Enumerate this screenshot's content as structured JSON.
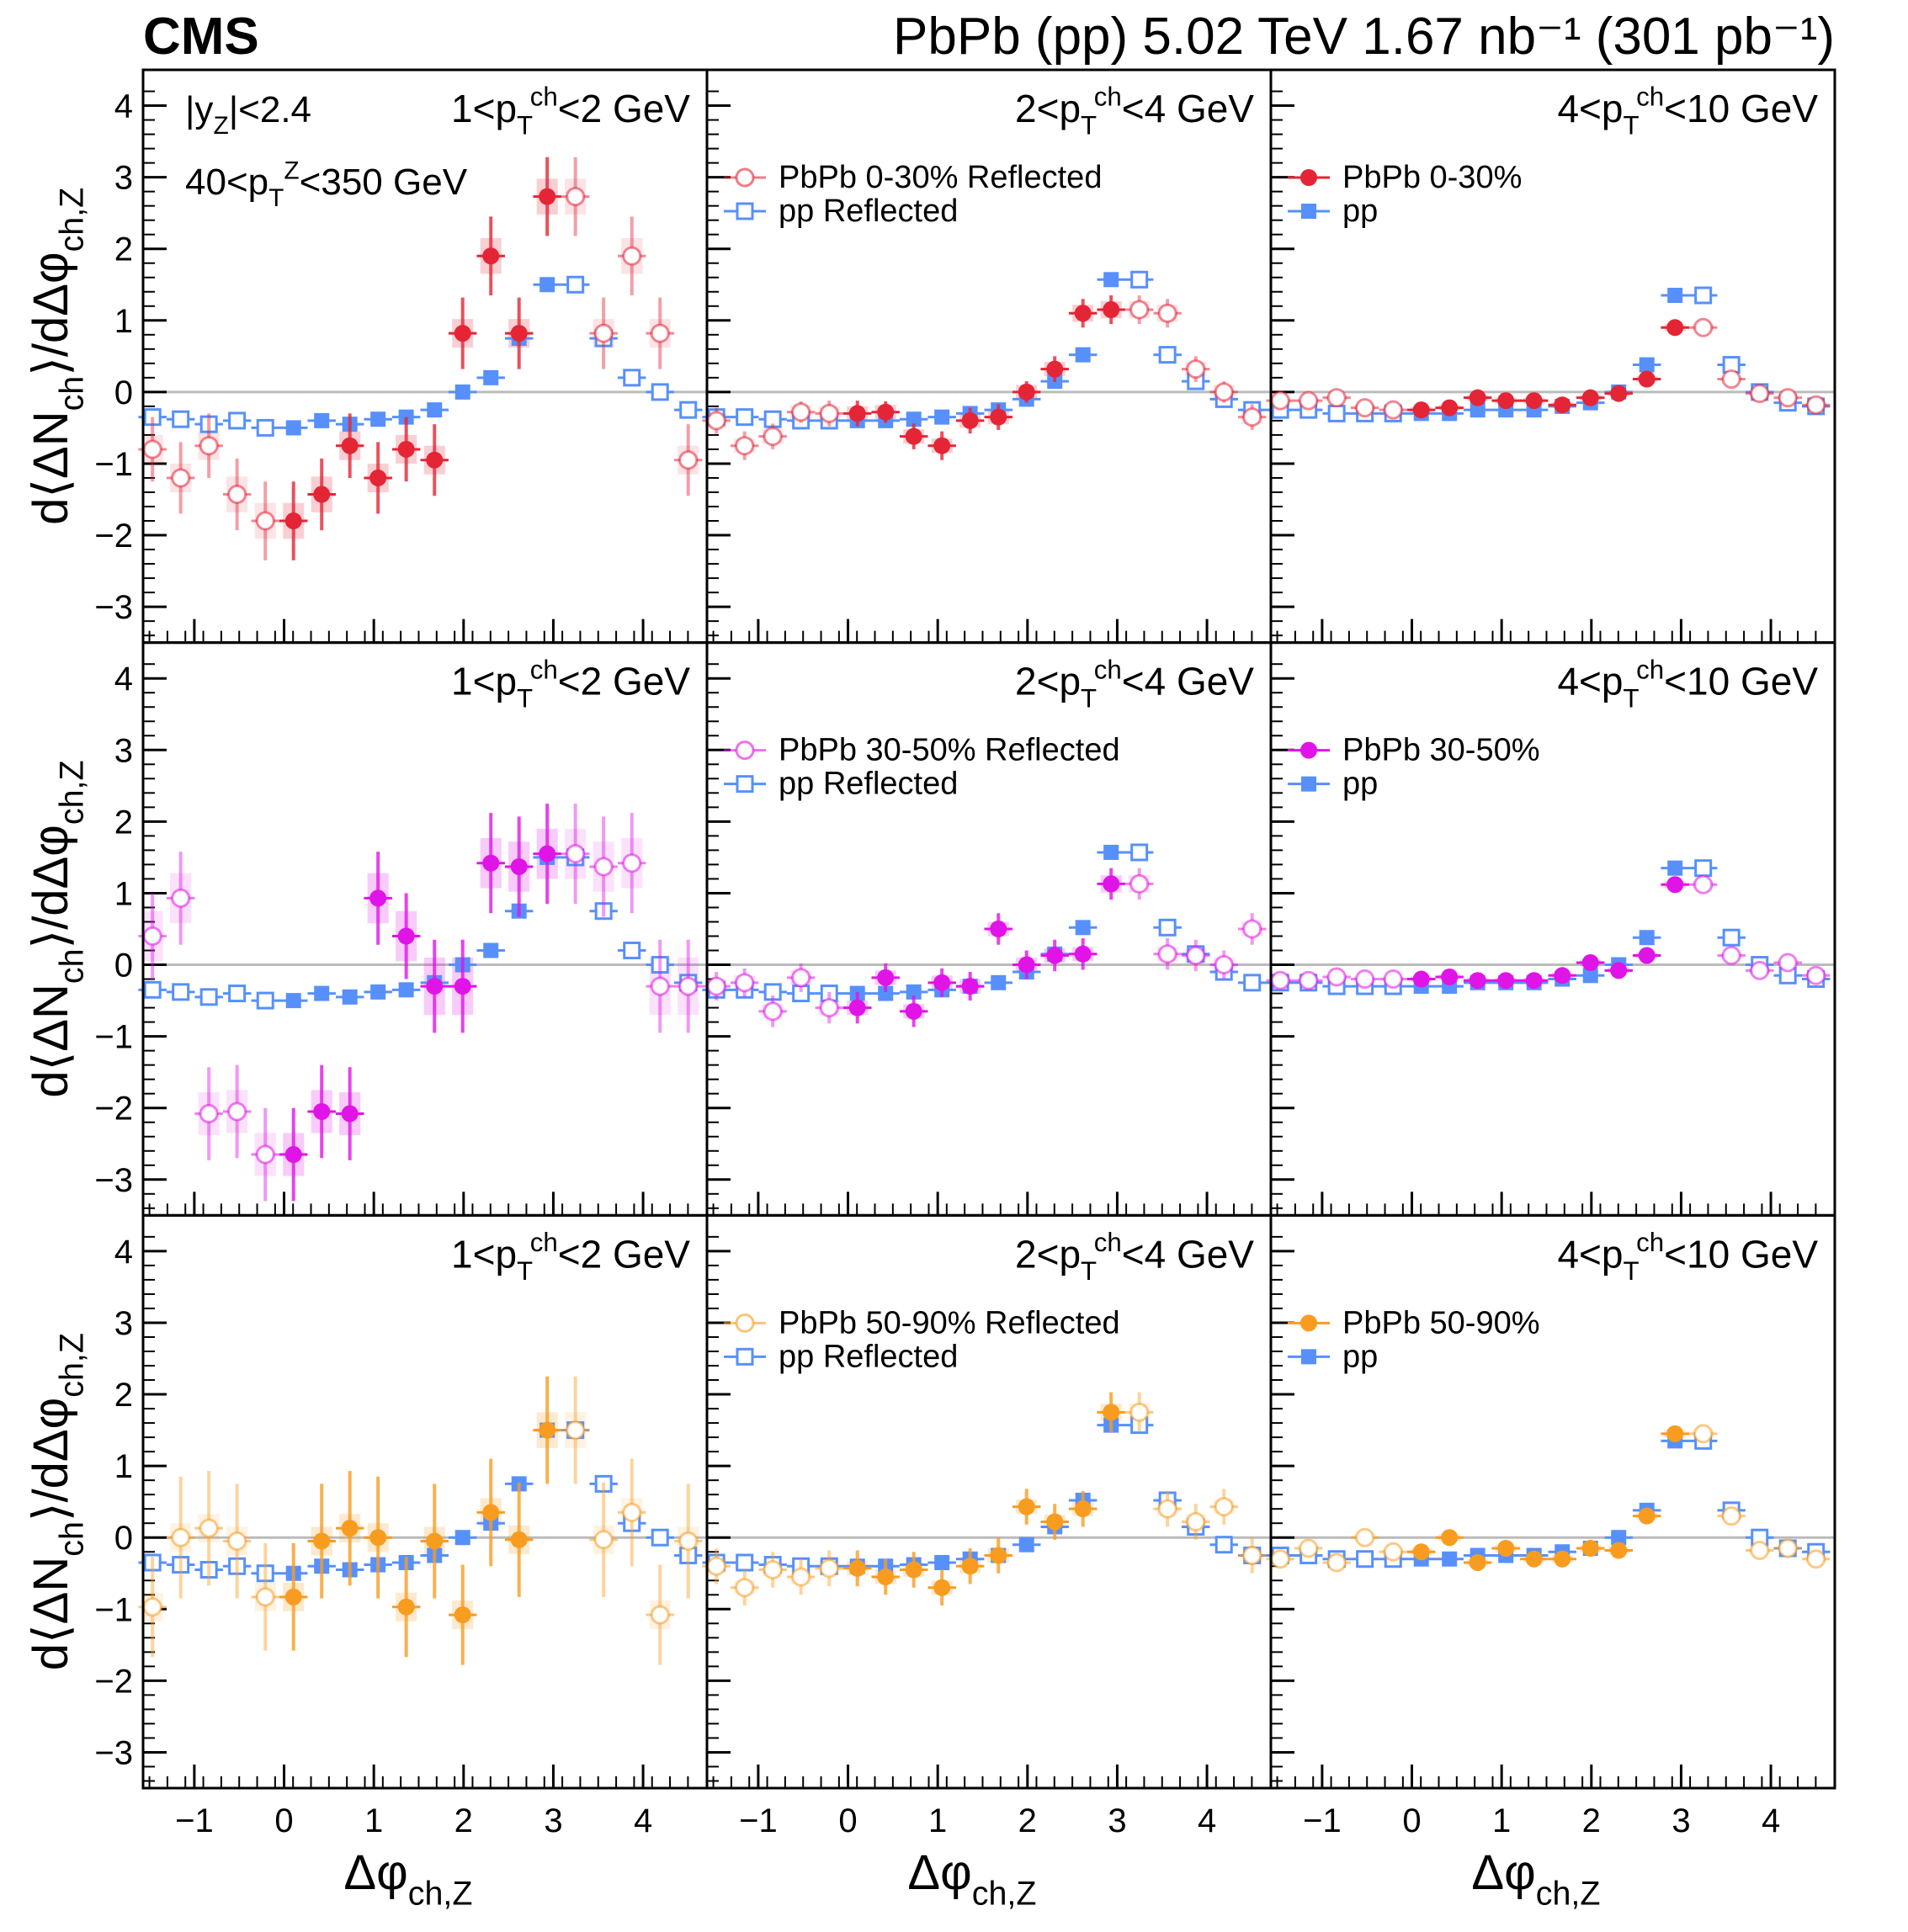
{
  "header": {
    "experiment": "CMS",
    "title": "PbPb (pp) 5.02 TeV 1.67 nb⁻¹ (301 pb⁻¹)"
  },
  "colors": {
    "pp": "#5790fc",
    "PbPb 0-30%": "#e42536",
    "PbPb 30-50%": "#e014e6",
    "PbPb 50-90%": "#f89c20",
    "zero_line": "#bbbbbb"
  },
  "axis_labels": {
    "x": "Δφch,Z",
    "y": "d⟨ΔNch⟩/dΔφch,Z"
  },
  "kinematic_labels": [
    "|yZ|<2.4",
    "40<pTZ<350 GeV"
  ],
  "column_titles": [
    "1<pTch<2 GeV",
    "2<pTch<4 GeV",
    "4<pTch<10 GeV"
  ],
  "legends": [
    {
      "reflected": "PbPb 0-30% Reflected",
      "pp_reflected": "pp Reflected",
      "measured": "PbPb 0-30%",
      "pp": "pp"
    },
    {
      "reflected": "PbPb 30-50% Reflected",
      "pp_reflected": "pp Reflected",
      "measured": "PbPb 30-50%",
      "pp": "pp"
    },
    {
      "reflected": "PbPb 50-90% Reflected",
      "pp_reflected": "pp Reflected",
      "measured": "PbPb 50-90%",
      "pp": "pp"
    }
  ],
  "chart_data": {
    "type": "scatter",
    "xlabel": "Δφch,Z",
    "ylabel": "d⟨ΔNch⟩/dΔφch,Z",
    "xlim": [
      -1.571,
      4.712
    ],
    "ylim": [
      -3.5,
      4.5
    ],
    "x_ticks": [
      -1,
      0,
      1,
      2,
      3,
      4
    ],
    "y_ticks": [
      -3,
      -2,
      -1,
      0,
      1,
      2,
      3,
      4
    ],
    "x_bin_centers": [
      -1.466,
      -1.152,
      -0.838,
      -0.524,
      -0.209,
      0.105,
      0.419,
      0.733,
      1.047,
      1.361,
      1.676,
      1.99,
      2.304,
      2.618,
      2.932,
      3.246,
      3.56,
      3.875,
      4.189,
      4.503
    ],
    "pp": [
      [
        -0.35,
        -0.38,
        -0.45,
        -0.4,
        -0.5,
        -0.5,
        -0.4,
        -0.45,
        -0.38,
        -0.35,
        -0.25,
        0.0,
        0.2,
        0.75,
        1.5,
        1.5,
        0.75,
        0.2,
        0.0,
        -0.25
      ],
      [
        -0.35,
        -0.35,
        -0.38,
        -0.4,
        -0.4,
        -0.4,
        -0.4,
        -0.38,
        -0.35,
        -0.3,
        -0.25,
        -0.1,
        0.15,
        0.52,
        1.57,
        1.57,
        0.52,
        0.15,
        -0.1,
        -0.25
      ],
      [
        -0.25,
        -0.25,
        -0.3,
        -0.3,
        -0.3,
        -0.3,
        -0.3,
        -0.25,
        -0.25,
        -0.25,
        -0.2,
        -0.15,
        0.0,
        0.38,
        1.35,
        1.35,
        0.38,
        0.0,
        -0.15,
        -0.2
      ]
    ],
    "series": [
      {
        "name": "PbPb 0-30%",
        "row": 0,
        "column": 0,
        "y": [
          -0.8,
          -1.2,
          -0.75,
          -1.43,
          -1.8,
          -1.8,
          -1.43,
          -0.75,
          -1.2,
          -0.8,
          -0.95,
          0.82,
          1.9,
          0.82,
          2.73,
          2.73,
          0.82,
          1.9,
          0.82,
          -0.95
        ],
        "stat": [
          0.45,
          0.5,
          0.45,
          0.5,
          0.55,
          0.55,
          0.5,
          0.45,
          0.5,
          0.45,
          0.5,
          0.5,
          0.55,
          0.5,
          0.55,
          0.55,
          0.5,
          0.55,
          0.5,
          0.5
        ],
        "sys": [
          0.2,
          0.2,
          0.2,
          0.25,
          0.25,
          0.25,
          0.25,
          0.2,
          0.2,
          0.2,
          0.2,
          0.2,
          0.25,
          0.2,
          0.25,
          0.25,
          0.2,
          0.25,
          0.2,
          0.2
        ]
      },
      {
        "name": "PbPb 0-30%",
        "row": 0,
        "column": 1,
        "y": [
          -0.4,
          -0.75,
          -0.62,
          -0.28,
          -0.3,
          -0.3,
          -0.28,
          -0.62,
          -0.75,
          -0.4,
          -0.35,
          0.0,
          0.32,
          1.1,
          1.15,
          1.15,
          1.1,
          0.32,
          0.0,
          -0.35
        ],
        "stat": [
          0.18,
          0.2,
          0.18,
          0.15,
          0.18,
          0.18,
          0.15,
          0.18,
          0.2,
          0.18,
          0.18,
          0.15,
          0.18,
          0.2,
          0.2,
          0.2,
          0.2,
          0.18,
          0.15,
          0.18
        ],
        "sys": [
          0.1,
          0.1,
          0.1,
          0.1,
          0.1,
          0.1,
          0.1,
          0.1,
          0.1,
          0.1,
          0.1,
          0.1,
          0.1,
          0.12,
          0.12,
          0.12,
          0.12,
          0.1,
          0.1,
          0.1
        ]
      },
      {
        "name": "PbPb 0-30%",
        "row": 0,
        "column": 2,
        "y": [
          -0.12,
          -0.12,
          -0.08,
          -0.22,
          -0.25,
          -0.25,
          -0.22,
          -0.08,
          -0.12,
          -0.12,
          -0.18,
          -0.08,
          -0.02,
          0.18,
          0.9,
          0.9,
          0.18,
          -0.02,
          -0.08,
          -0.18
        ],
        "stat": [
          0.05,
          0.05,
          0.05,
          0.05,
          0.05,
          0.05,
          0.05,
          0.05,
          0.05,
          0.05,
          0.05,
          0.05,
          0.05,
          0.05,
          0.06,
          0.06,
          0.05,
          0.05,
          0.05,
          0.05
        ],
        "sys": [
          0.04,
          0.04,
          0.04,
          0.04,
          0.04,
          0.04,
          0.04,
          0.04,
          0.04,
          0.04,
          0.04,
          0.04,
          0.04,
          0.04,
          0.05,
          0.05,
          0.04,
          0.04,
          0.04,
          0.04
        ]
      },
      {
        "name": "PbPb 30-50%",
        "row": 1,
        "column": 0,
        "y": [
          0.4,
          0.93,
          -2.08,
          -2.05,
          -2.65,
          -2.65,
          -2.05,
          -2.08,
          0.93,
          0.4,
          -0.3,
          -0.3,
          1.42,
          1.37,
          1.55,
          1.55,
          1.37,
          1.42,
          -0.3,
          -0.3
        ],
        "stat": [
          0.6,
          0.65,
          0.65,
          0.65,
          0.65,
          0.65,
          0.65,
          0.65,
          0.65,
          0.6,
          0.65,
          0.65,
          0.7,
          0.7,
          0.7,
          0.7,
          0.7,
          0.7,
          0.65,
          0.65
        ],
        "sys": [
          0.35,
          0.35,
          0.3,
          0.3,
          0.3,
          0.3,
          0.3,
          0.3,
          0.35,
          0.35,
          0.4,
          0.4,
          0.35,
          0.35,
          0.35,
          0.35,
          0.35,
          0.35,
          0.4,
          0.4
        ]
      },
      {
        "name": "PbPb 30-50%",
        "row": 1,
        "column": 1,
        "y": [
          -0.3,
          -0.25,
          -0.65,
          -0.18,
          -0.6,
          -0.6,
          -0.18,
          -0.65,
          -0.25,
          -0.3,
          0.5,
          0.0,
          0.13,
          0.15,
          1.13,
          1.13,
          0.15,
          0.13,
          0.0,
          0.5
        ],
        "stat": [
          0.2,
          0.2,
          0.22,
          0.2,
          0.22,
          0.22,
          0.2,
          0.22,
          0.2,
          0.2,
          0.22,
          0.2,
          0.22,
          0.22,
          0.22,
          0.22,
          0.22,
          0.22,
          0.2,
          0.22
        ],
        "sys": [
          0.1,
          0.1,
          0.1,
          0.1,
          0.1,
          0.1,
          0.1,
          0.1,
          0.1,
          0.1,
          0.1,
          0.1,
          0.1,
          0.1,
          0.12,
          0.12,
          0.1,
          0.1,
          0.1,
          0.1
        ]
      },
      {
        "name": "PbPb 30-50%",
        "row": 1,
        "column": 2,
        "y": [
          -0.22,
          -0.22,
          -0.17,
          -0.2,
          -0.2,
          -0.2,
          -0.17,
          -0.22,
          -0.22,
          -0.22,
          -0.15,
          0.03,
          -0.08,
          0.13,
          1.12,
          1.12,
          0.13,
          -0.08,
          0.03,
          -0.15
        ],
        "stat": [
          0.05,
          0.05,
          0.05,
          0.05,
          0.05,
          0.05,
          0.05,
          0.05,
          0.05,
          0.05,
          0.05,
          0.05,
          0.05,
          0.05,
          0.06,
          0.06,
          0.05,
          0.05,
          0.05,
          0.05
        ],
        "sys": [
          0.04,
          0.04,
          0.04,
          0.04,
          0.04,
          0.04,
          0.04,
          0.04,
          0.04,
          0.04,
          0.04,
          0.04,
          0.04,
          0.04,
          0.05,
          0.05,
          0.04,
          0.04,
          0.04,
          0.04
        ]
      },
      {
        "name": "PbPb 50-90%",
        "row": 2,
        "column": 0,
        "y": [
          -0.97,
          0.0,
          0.13,
          -0.05,
          -0.83,
          -0.83,
          -0.05,
          0.13,
          0.0,
          -0.97,
          -0.05,
          -1.08,
          0.35,
          -0.03,
          1.5,
          1.5,
          -0.03,
          0.35,
          -1.08,
          -0.05
        ],
        "stat": [
          0.7,
          0.85,
          0.8,
          0.8,
          0.75,
          0.75,
          0.8,
          0.8,
          0.85,
          0.7,
          0.8,
          0.7,
          0.75,
          0.8,
          0.75,
          0.75,
          0.8,
          0.75,
          0.7,
          0.8
        ],
        "sys": [
          0.2,
          0.2,
          0.2,
          0.2,
          0.2,
          0.2,
          0.2,
          0.2,
          0.2,
          0.2,
          0.2,
          0.2,
          0.2,
          0.2,
          0.25,
          0.25,
          0.2,
          0.2,
          0.2,
          0.2
        ]
      },
      {
        "name": "PbPb 50-90%",
        "row": 2,
        "column": 1,
        "y": [
          -0.4,
          -0.7,
          -0.45,
          -0.55,
          -0.43,
          -0.43,
          -0.55,
          -0.45,
          -0.7,
          -0.4,
          -0.25,
          0.43,
          0.22,
          0.4,
          1.75,
          1.75,
          0.4,
          0.22,
          0.43,
          -0.25
        ],
        "stat": [
          0.25,
          0.25,
          0.25,
          0.25,
          0.25,
          0.25,
          0.25,
          0.25,
          0.25,
          0.25,
          0.25,
          0.25,
          0.25,
          0.25,
          0.28,
          0.28,
          0.25,
          0.25,
          0.25,
          0.25
        ],
        "sys": [
          0.1,
          0.1,
          0.1,
          0.1,
          0.1,
          0.1,
          0.1,
          0.1,
          0.1,
          0.1,
          0.1,
          0.1,
          0.1,
          0.1,
          0.12,
          0.12,
          0.1,
          0.1,
          0.1,
          0.1
        ]
      },
      {
        "name": "PbPb 50-90%",
        "row": 2,
        "column": 2,
        "y": [
          -0.3,
          -0.15,
          -0.35,
          0.0,
          -0.2,
          -0.2,
          0.0,
          -0.35,
          -0.15,
          -0.3,
          -0.3,
          -0.15,
          -0.18,
          0.3,
          1.45,
          1.45,
          0.3,
          -0.18,
          -0.15,
          -0.3
        ],
        "stat": [
          0.07,
          0.07,
          0.07,
          0.07,
          0.07,
          0.07,
          0.07,
          0.07,
          0.07,
          0.07,
          0.07,
          0.07,
          0.07,
          0.07,
          0.08,
          0.08,
          0.07,
          0.07,
          0.07,
          0.07
        ],
        "sys": [
          0.05,
          0.05,
          0.05,
          0.05,
          0.05,
          0.05,
          0.05,
          0.05,
          0.05,
          0.05,
          0.05,
          0.05,
          0.05,
          0.05,
          0.06,
          0.06,
          0.05,
          0.05,
          0.05,
          0.05
        ]
      }
    ]
  }
}
